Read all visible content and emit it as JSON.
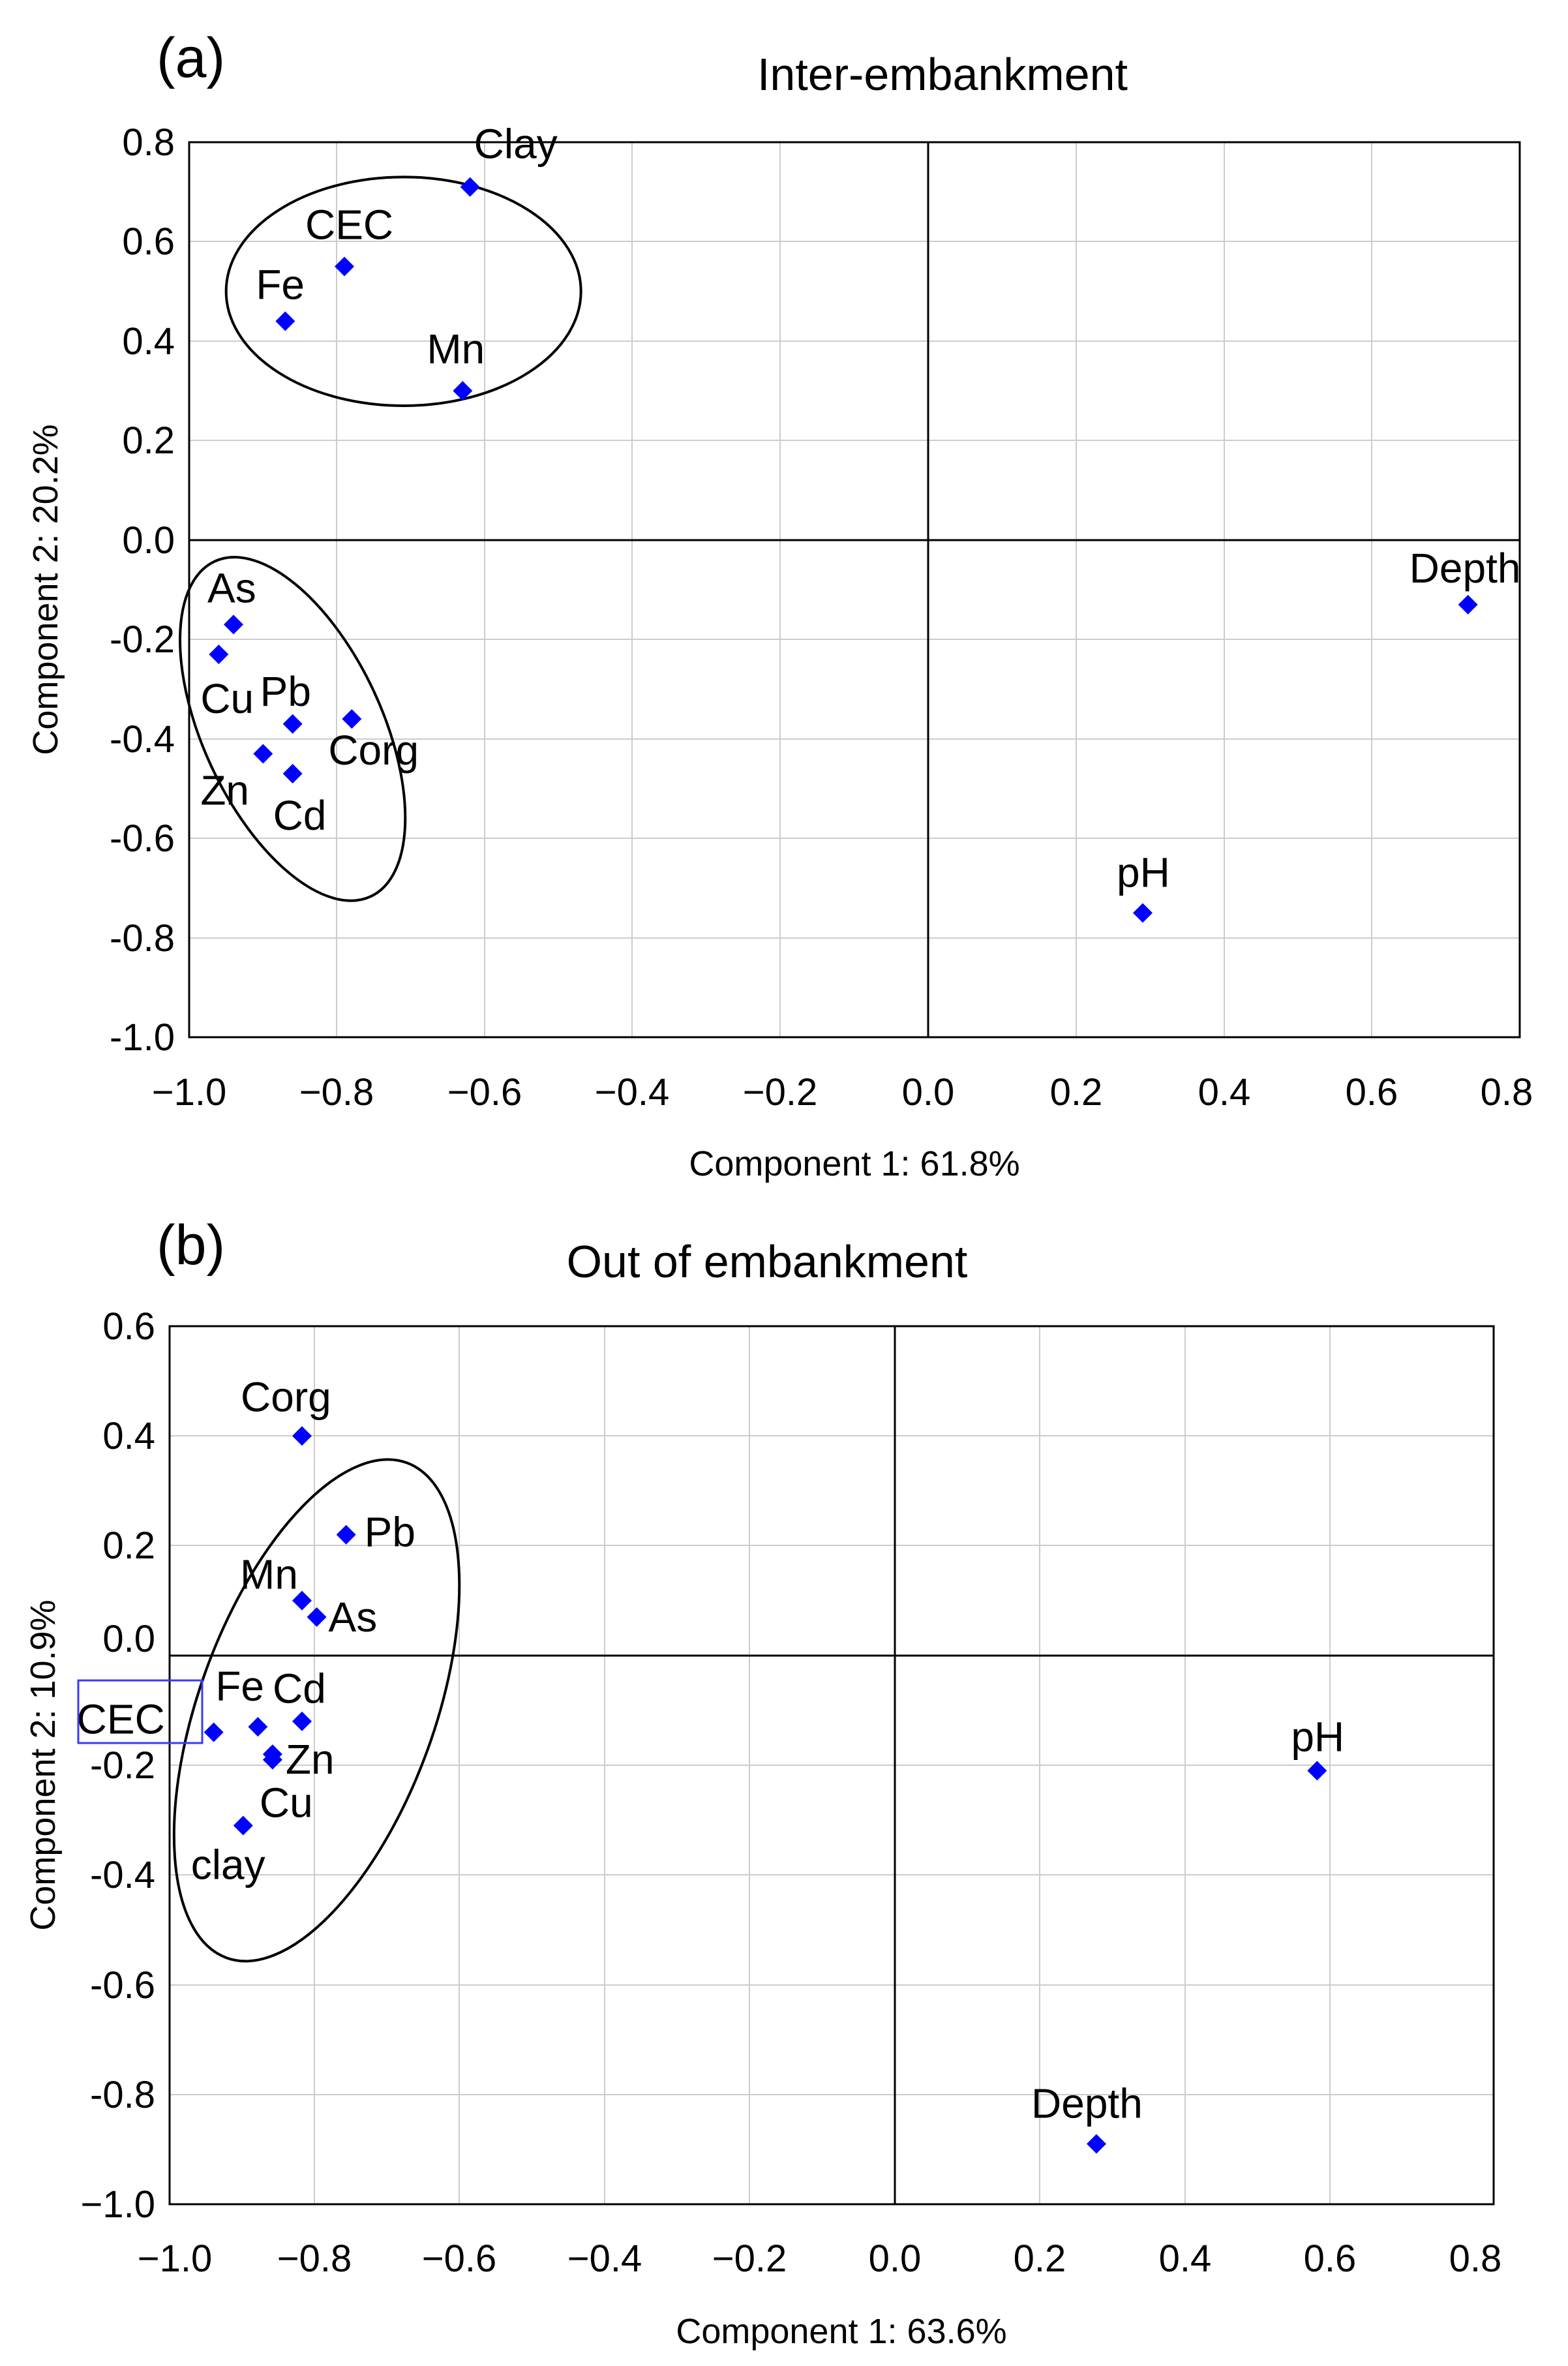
{
  "chart_data": [
    {
      "type": "scatter",
      "panel_label": "(a)",
      "title": "Inter-embankment",
      "xlabel": "Component 1: 61.8%",
      "ylabel": "Component 2: 20.2%",
      "xlim": [
        -1.0,
        0.8
      ],
      "ylim": [
        -1.0,
        0.8
      ],
      "xticks": [
        -1.0,
        -0.8,
        -0.6,
        -0.4,
        -0.2,
        0.0,
        0.2,
        0.4,
        0.6,
        0.8
      ],
      "xtick_labels": [
        "−1.0",
        "−0.8",
        "−0.6",
        "−0.4",
        "−0.2",
        "0.0",
        "0.2",
        "0.4",
        "0.6",
        "0.8"
      ],
      "yticks": [
        0.8,
        0.6,
        0.4,
        0.2,
        0.0,
        -0.2,
        -0.4,
        -0.6,
        -0.8,
        -1.0
      ],
      "ytick_labels": [
        "0.8",
        "0.6",
        "0.4",
        "0.2",
        "0.0",
        "-0.2",
        "-0.4",
        "-0.6",
        "-0.8",
        "-1.0"
      ],
      "grid": true,
      "marker_color": "#0000ff",
      "points": [
        {
          "label": "Clay",
          "x": -0.62,
          "y": 0.71
        },
        {
          "label": "CEC",
          "x": -0.79,
          "y": 0.55
        },
        {
          "label": "Fe",
          "x": -0.87,
          "y": 0.44
        },
        {
          "label": "Mn",
          "x": -0.63,
          "y": 0.3
        },
        {
          "label": "Depth",
          "x": 0.73,
          "y": -0.13
        },
        {
          "label": "As",
          "x": -0.94,
          "y": -0.17
        },
        {
          "label": "Cu",
          "x": -0.96,
          "y": -0.23
        },
        {
          "label": "Pb",
          "x": -0.86,
          "y": -0.37
        },
        {
          "label": "Corg",
          "x": -0.78,
          "y": -0.36
        },
        {
          "label": "Zn",
          "x": -0.9,
          "y": -0.43
        },
        {
          "label": "Cd",
          "x": -0.86,
          "y": -0.47
        },
        {
          "label": "pH",
          "x": 0.29,
          "y": -0.75
        }
      ],
      "ellipses": [
        {
          "name": "group-top",
          "cx": -0.71,
          "cy": 0.5,
          "rx": 0.24,
          "ry": 0.23,
          "angle": 0
        },
        {
          "name": "group-bottom",
          "cx": -0.86,
          "cy": -0.38,
          "rx": 0.25,
          "ry": 0.18,
          "angle": 65
        }
      ]
    },
    {
      "type": "scatter",
      "panel_label": "(b)",
      "title": "Out of embankment",
      "xlabel": "Component 1: 63.6%",
      "ylabel": "Component 2: 10.9%",
      "xlim": [
        -1.0,
        0.8
      ],
      "ylim": [
        -1.0,
        0.6
      ],
      "xticks": [
        -1.0,
        -0.8,
        -0.6,
        -0.4,
        -0.2,
        0.0,
        0.2,
        0.4,
        0.6,
        0.8
      ],
      "xtick_labels": [
        "−1.0",
        "−0.8",
        "−0.6",
        "−0.4",
        "−0.2",
        "0.0",
        "0.2",
        "0.4",
        "0.6",
        "0.8"
      ],
      "yticks": [
        0.6,
        0.4,
        0.2,
        0.0,
        -0.2,
        -0.4,
        -0.6,
        -0.8,
        -1.0
      ],
      "ytick_labels": [
        "0.6",
        "0.4",
        "0.2",
        "0.0",
        "-0.2",
        "-0.4",
        "-0.6",
        "-0.8",
        "−1.0"
      ],
      "grid": true,
      "marker_color": "#0000ff",
      "points": [
        {
          "label": "Corg",
          "x": -0.82,
          "y": 0.4
        },
        {
          "label": "Pb",
          "x": -0.76,
          "y": 0.22
        },
        {
          "label": "Mn",
          "x": -0.82,
          "y": 0.1
        },
        {
          "label": "As",
          "x": -0.8,
          "y": 0.07
        },
        {
          "label": "CEC",
          "x": -0.94,
          "y": -0.14
        },
        {
          "label": "Fe",
          "x": -0.88,
          "y": -0.13
        },
        {
          "label": "Cd",
          "x": -0.82,
          "y": -0.12
        },
        {
          "label": "Zn",
          "x": -0.86,
          "y": -0.18
        },
        {
          "label": "Cu",
          "x": -0.86,
          "y": -0.19
        },
        {
          "label": "clay",
          "x": -0.9,
          "y": -0.31
        },
        {
          "label": "pH",
          "x": 0.56,
          "y": -0.21
        },
        {
          "label": "Depth",
          "x": 0.26,
          "y": -0.89
        }
      ],
      "ellipses": [
        {
          "name": "group-left",
          "cx": -0.8,
          "cy": -0.1,
          "rx": 0.16,
          "ry": 0.48,
          "angle": 20
        }
      ]
    }
  ]
}
